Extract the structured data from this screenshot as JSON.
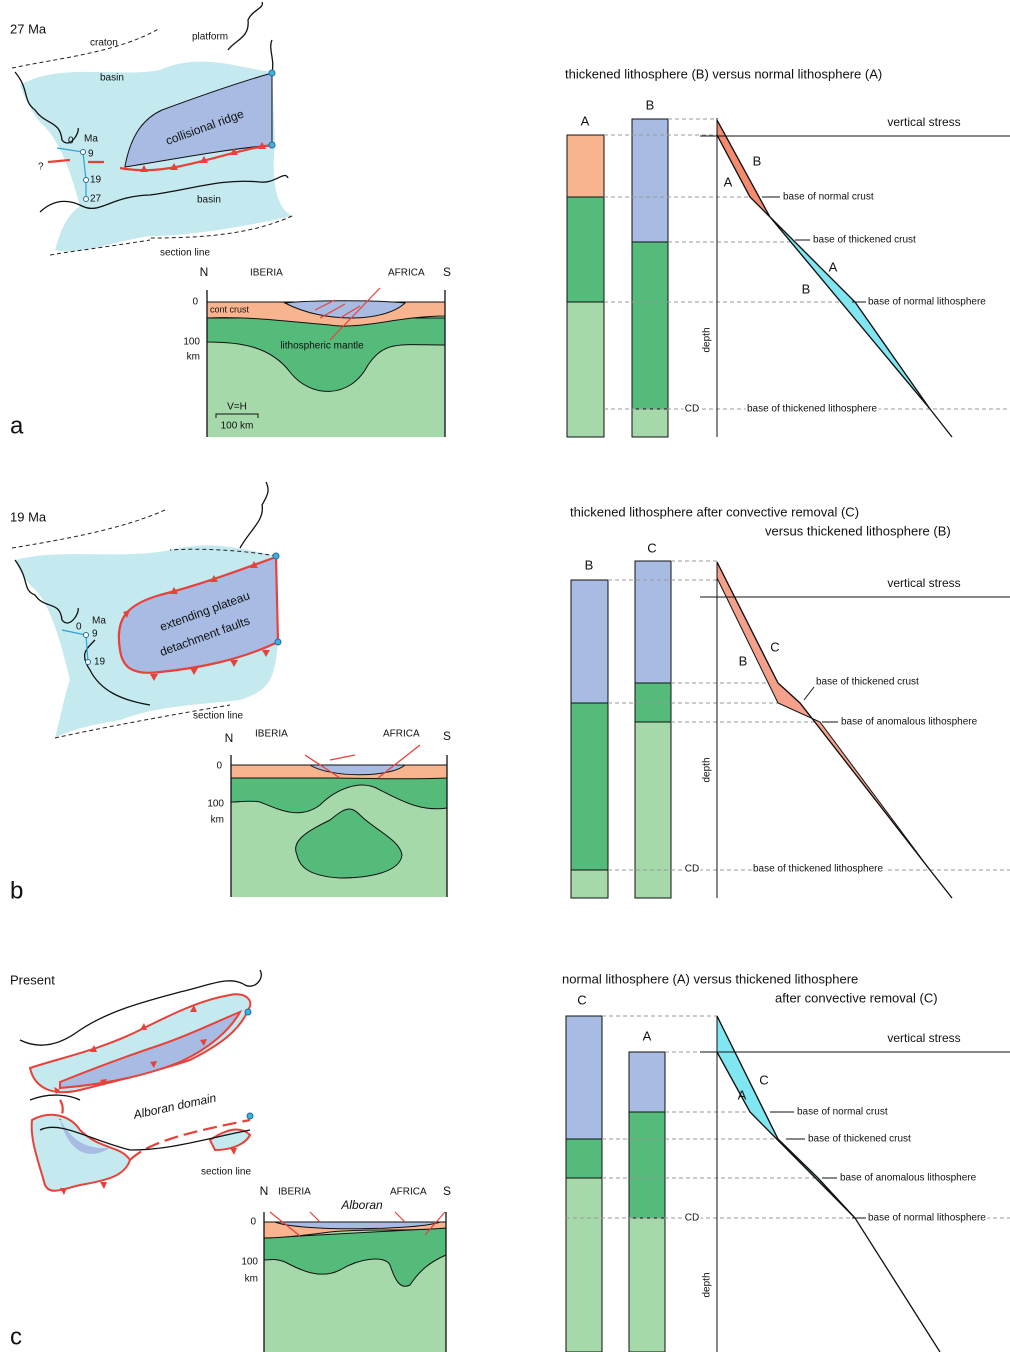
{
  "panels": [
    {
      "label": "a",
      "map": {
        "time": "27 Ma",
        "labels": [
          "craton",
          "platform",
          "basin",
          "collisional ridge",
          "basin",
          "?",
          "section line"
        ],
        "ages": [
          "0",
          "Ma",
          "9",
          "19",
          "27"
        ]
      },
      "section": {
        "north": "N",
        "south": "S",
        "left_region": "IBERIA",
        "right_region": "AFRICA",
        "depth_ticks": [
          0,
          100
        ],
        "depth_unit": "km",
        "labels": [
          "cont crust",
          "lithospheric mantle"
        ],
        "scale_ratio": "V=H",
        "scale_bar": "100 km"
      },
      "stress": {
        "title": [
          "thickened lithosphere (B) versus normal lithosphere (A)"
        ],
        "columns": [
          "A",
          "B"
        ],
        "horizontal_axis": "vertical stress",
        "vertical_axis": "depth",
        "curve_labels": [
          "B",
          "A",
          "A",
          "B"
        ],
        "levels": [
          "base of normal crust",
          "base of thickened crust",
          "base of normal lithosphere",
          "base of thickened lithosphere"
        ],
        "cd": "CD"
      }
    },
    {
      "label": "b",
      "map": {
        "time": "19 Ma",
        "labels": [
          "extending plateau",
          "detachment faults",
          "section line"
        ],
        "ages": [
          "0",
          "Ma",
          "9",
          "19"
        ]
      },
      "section": {
        "north": "N",
        "south": "S",
        "left_region": "IBERIA",
        "right_region": "AFRICA",
        "depth_ticks": [
          0,
          100
        ],
        "depth_unit": "km"
      },
      "stress": {
        "title": [
          "thickened lithosphere after convective removal (C)",
          "versus thickened lithosphere (B)"
        ],
        "columns": [
          "B",
          "C"
        ],
        "horizontal_axis": "vertical stress",
        "vertical_axis": "depth",
        "curve_labels": [
          "C",
          "B"
        ],
        "levels": [
          "base of thickened crust",
          "base of anomalous lithosphere",
          "base of thickened lithosphere"
        ],
        "cd": "CD"
      }
    },
    {
      "label": "c",
      "map": {
        "time": "Present",
        "labels": [
          "Alboran domain",
          "section line"
        ]
      },
      "section": {
        "north": "N",
        "south": "S",
        "left_region": "IBERIA",
        "right_region": "AFRICA",
        "basin": "Alboran",
        "depth_ticks": [
          0,
          100
        ],
        "depth_unit": "km"
      },
      "stress": {
        "title": [
          "normal lithosphere (A) versus thickened lithosphere",
          "after convective removal (C)"
        ],
        "columns": [
          "C",
          "A"
        ],
        "horizontal_axis": "vertical stress",
        "vertical_axis": "depth",
        "curve_labels": [
          "C",
          "A"
        ],
        "levels": [
          "base of normal crust",
          "base of thickened crust",
          "base of anomalous lithosphere",
          "base of normal lithosphere"
        ],
        "cd": "CD"
      }
    }
  ]
}
